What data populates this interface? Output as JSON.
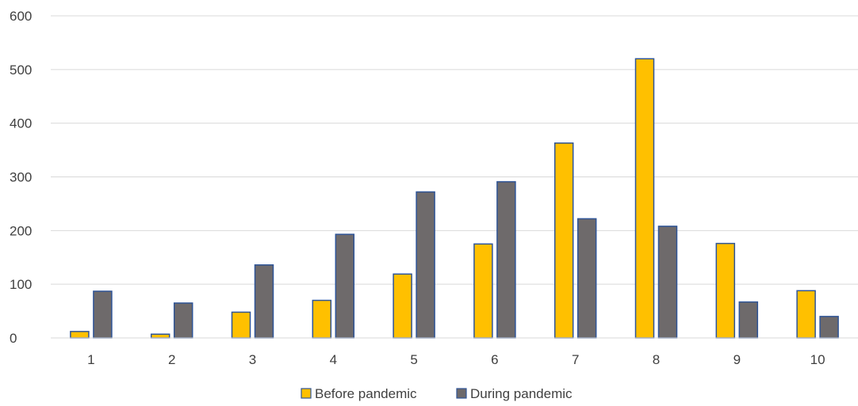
{
  "chart_data": {
    "type": "bar",
    "categories": [
      "1",
      "2",
      "3",
      "4",
      "5",
      "6",
      "7",
      "8",
      "9",
      "10"
    ],
    "series": [
      {
        "name": "Before pandemic",
        "color": "#FFC000",
        "values": [
          12,
          7,
          48,
          70,
          119,
          175,
          363,
          520,
          176,
          88
        ]
      },
      {
        "name": "During pandemic",
        "color": "#6E6A6B",
        "values": [
          87,
          65,
          136,
          193,
          272,
          291,
          222,
          208,
          67,
          40
        ]
      }
    ],
    "bar_border_color": "#2F5597",
    "ylim": [
      0,
      600
    ],
    "yticks": [
      "0",
      "100",
      "200",
      "300",
      "400",
      "500",
      "600"
    ],
    "grid": true,
    "legend_position": "bottom"
  }
}
